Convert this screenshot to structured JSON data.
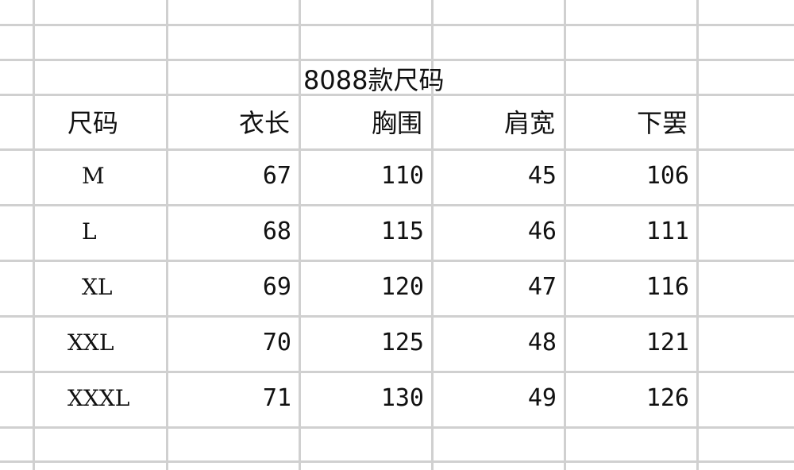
{
  "title": "8088款尺码",
  "headers": [
    "尺码",
    "衣长",
    "胸围",
    "肩宽",
    "下罢"
  ],
  "rows": [
    [
      "M",
      "67",
      "110",
      "45",
      "106"
    ],
    [
      "L",
      "68",
      "115",
      "46",
      "111"
    ],
    [
      "XL",
      "69",
      "120",
      "47",
      "116"
    ],
    [
      "XXL",
      "70",
      "125",
      "48",
      "121"
    ],
    [
      "XXXL",
      "71",
      "130",
      "49",
      "126"
    ]
  ]
}
